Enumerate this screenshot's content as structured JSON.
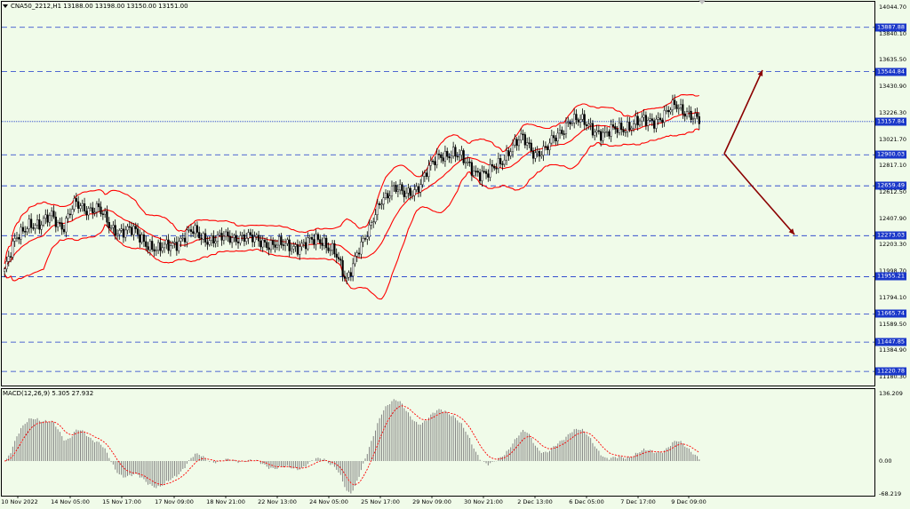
{
  "header": {
    "symbol_info": "CNA50_2212,H1  13188.00 13198.00 13150.00 13151.00",
    "menu_icon": "triangle-down-icon"
  },
  "macd": {
    "title": "MACD(12,26,9) 5.305 27.932",
    "scale": [
      "136.209",
      "0.00",
      "-68.219"
    ]
  },
  "price_scale": [
    "14044.70",
    "13840.10",
    "13635.50",
    "13430.90",
    "13226.30",
    "13021.70",
    "12817.10",
    "12612.50",
    "12407.90",
    "12203.30",
    "11998.70",
    "11794.10",
    "11589.50",
    "11384.90",
    "11180.30"
  ],
  "levels": [
    "13887.88",
    "13544.84",
    "13157.84",
    "12900.03",
    "12659.49",
    "12273.03",
    "11955.21",
    "11665.74",
    "11447.85",
    "11220.78"
  ],
  "time_axis": [
    "10 Nov 2022",
    "14 Nov 05:00",
    "15 Nov 17:00",
    "17 Nov 09:00",
    "18 Nov 21:00",
    "22 Nov 13:00",
    "24 Nov 05:00",
    "25 Nov 17:00",
    "29 Nov 09:00",
    "30 Nov 21:00",
    "2 Dec 13:00",
    "6 Dec 05:00",
    "7 Dec 17:00",
    "9 Dec 09:00"
  ],
  "colors": {
    "background": "#f0fbe9",
    "candles": "#000000",
    "bands": "#ff0000",
    "levels": "#1a37c9",
    "arrows": "#8b0000",
    "histogram": "#808080",
    "signal": "#ff0000"
  },
  "chart_data": {
    "type": "candlestick",
    "symbol": "CNA50_2212",
    "timeframe": "H1",
    "last_bar": {
      "open": 13188.0,
      "high": 13198.0,
      "low": 13150.0,
      "close": 13151.0
    },
    "indicators": [
      "Bollinger Bands",
      "MACD(12,26,9)"
    ],
    "macd_last": {
      "macd": 5.305,
      "signal": 27.932
    },
    "close_path": [
      12000,
      12250,
      12380,
      12330,
      12450,
      12330,
      12520,
      12490,
      12470,
      12340,
      12310,
      12300,
      12230,
      12150,
      12200,
      12250,
      12300,
      12260,
      12240,
      12260,
      12270,
      12240,
      12230,
      12200,
      12190,
      12200,
      12220,
      12240,
      12160,
      11900,
      12180,
      12300,
      12560,
      12650,
      12580,
      12650,
      12780,
      12900,
      12920,
      12850,
      12780,
      12740,
      12830,
      12960,
      13020,
      12920,
      12940,
      13050,
      13180,
      13150,
      13110,
      13050,
      13100,
      13130,
      13150,
      13170,
      13200,
      13280,
      13240,
      13151
    ]
  }
}
